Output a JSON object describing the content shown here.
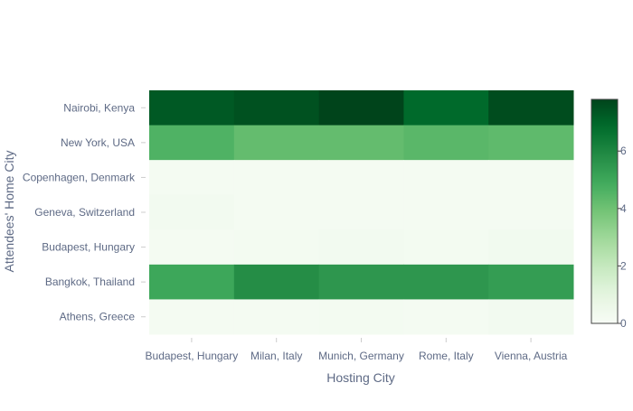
{
  "chart_data": {
    "type": "heatmap",
    "title": "",
    "xlabel": "Hosting City",
    "ylabel": "Attendees' Home City",
    "x_categories": [
      "Budapest, Hungary",
      "Milan, Italy",
      "Munich, Germany",
      "Rome, Italy",
      "Vienna, Austria"
    ],
    "y_categories": [
      "Nairobi, Kenya",
      "New York, USA",
      "Copenhagen, Denmark",
      "Geneva, Switzerland",
      "Budapest, Hungary",
      "Bangkok, Thailand",
      "Athens, Greece"
    ],
    "z": [
      [
        7.3,
        7.5,
        7.8,
        6.9,
        7.6
      ],
      [
        4.6,
        4.2,
        4.2,
        4.4,
        4.3
      ],
      [
        0.15,
        0.15,
        0.15,
        0.15,
        0.15
      ],
      [
        0.25,
        0.15,
        0.15,
        0.15,
        0.15
      ],
      [
        0.15,
        0.2,
        0.25,
        0.2,
        0.3
      ],
      [
        5.0,
        5.8,
        5.5,
        5.5,
        5.3
      ],
      [
        0.15,
        0.15,
        0.2,
        0.15,
        0.25
      ]
    ],
    "colorscale": "Greens",
    "zmin": 0,
    "zmax": 7.8,
    "colorbar_ticks": [
      "0",
      "2",
      "4",
      "6"
    ],
    "colorbar_tick_values": [
      0,
      2,
      4,
      6
    ],
    "grid": false
  },
  "colors": {
    "axis_text": "#5e6a85",
    "tick_mark": "#cccccc",
    "colorbar_border": "#444444",
    "scale_low": "#f7fcf5",
    "scale_high": "#00441b"
  }
}
